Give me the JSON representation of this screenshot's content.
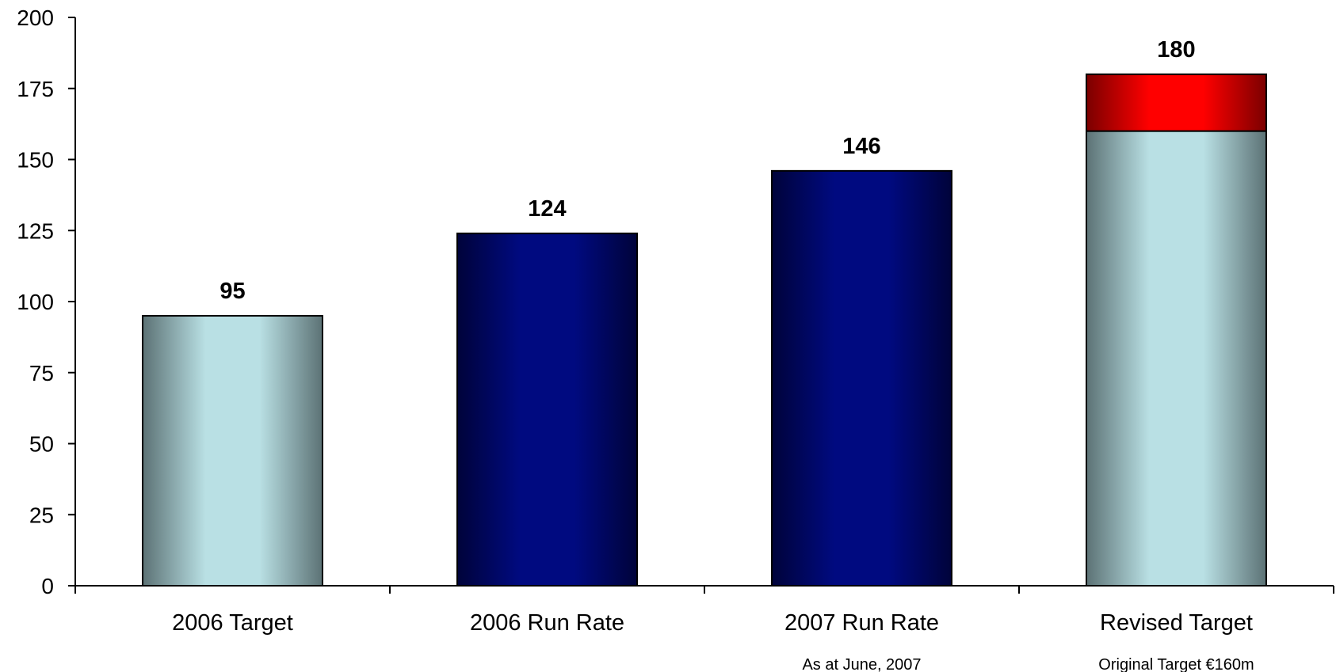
{
  "chart_data": {
    "type": "bar",
    "stacked": true,
    "categories": [
      "2006 Target",
      "2006 Run Rate",
      "2007 Run Rate",
      "Revised Target"
    ],
    "series": [
      {
        "values": [
          95,
          124,
          146,
          160
        ],
        "colors": [
          "#b9e0e4",
          "#000a80",
          "#000a80",
          "#b9e0e4"
        ]
      },
      {
        "values": [
          0,
          0,
          0,
          20
        ],
        "colors": [
          "#ff0000",
          "#ff0000",
          "#ff0000",
          "#ff0000"
        ]
      }
    ],
    "data_labels": [
      "95",
      "124",
      "146",
      "180"
    ],
    "notes": [
      "",
      "",
      "As at June,  2007",
      "Original Target  €160m"
    ],
    "ylim": [
      0,
      200
    ],
    "yticks": [
      0,
      25,
      50,
      75,
      100,
      125,
      150,
      175,
      200
    ],
    "grid": false,
    "title": "",
    "xlabel": "",
    "ylabel": ""
  }
}
